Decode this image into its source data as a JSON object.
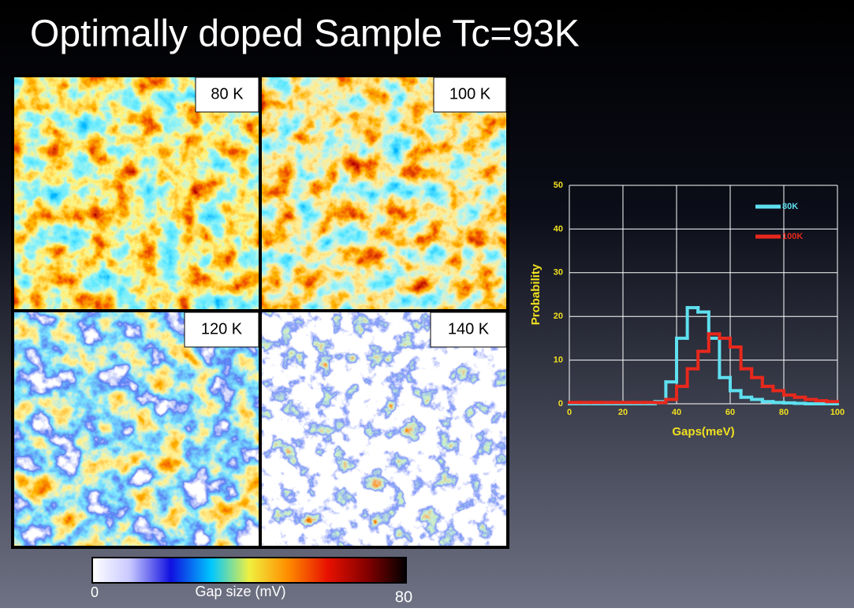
{
  "title": "Optimally doped Sample Tc=93K",
  "panels": [
    {
      "label": "80 K"
    },
    {
      "label": "100 K"
    },
    {
      "label": "120 K"
    },
    {
      "label": "140 K"
    }
  ],
  "colorbar": {
    "label": "Gap size (mV)",
    "ticks": [
      0,
      80
    ]
  },
  "chart_data": {
    "type": "histogram",
    "xlabel": "Gaps(meV)",
    "ylabel": "Probability",
    "bins": [
      0,
      4,
      8,
      12,
      16,
      20,
      24,
      28,
      32,
      36,
      40,
      44,
      48,
      52,
      56,
      60,
      64,
      68,
      72,
      76,
      80,
      84,
      88,
      92,
      96,
      100
    ],
    "series": [
      {
        "name": "80K",
        "color": "#5ee0f0",
        "values": [
          0,
          0,
          0,
          0,
          0,
          0,
          0,
          0,
          0.5,
          5,
          15,
          22,
          21,
          15,
          6,
          3,
          1.5,
          1,
          0.5,
          0.3,
          0.2,
          0.1,
          0,
          0,
          0
        ]
      },
      {
        "name": "100K",
        "color": "#e8281c",
        "values": [
          0.3,
          0.3,
          0.3,
          0.3,
          0.3,
          0.3,
          0.3,
          0.3,
          0.3,
          1,
          4,
          8,
          12,
          16,
          15,
          13,
          8,
          6,
          4,
          3,
          2,
          1.5,
          1,
          0.7,
          0.5
        ]
      }
    ],
    "xlim": [
      0,
      100
    ],
    "ylim": [
      0,
      50
    ],
    "xticks": [
      0,
      20,
      40,
      60,
      80,
      100
    ],
    "yticks": [
      0,
      10,
      20,
      30,
      40,
      50
    ],
    "grid": true,
    "legend": "top-right"
  }
}
